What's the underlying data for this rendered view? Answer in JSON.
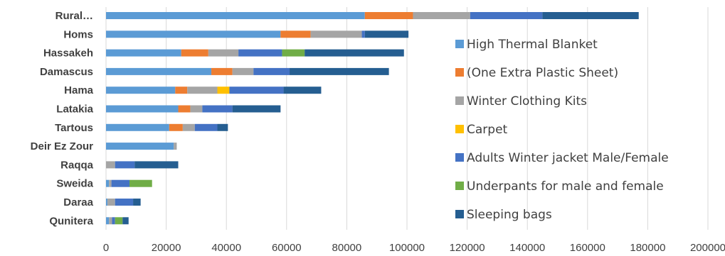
{
  "chart_data": {
    "type": "bar",
    "orientation": "horizontal",
    "stacked": true,
    "categories": [
      "Rural…",
      "Homs",
      "Hassakeh",
      "Damascus",
      "Hama",
      "Latakia",
      "Tartous",
      "Deir Ez Zour",
      "Raqqa",
      "Sweida",
      "Daraa",
      "Qunitera"
    ],
    "series": [
      {
        "name": "High Thermal Blanket",
        "color": "#5b9bd5",
        "values": [
          86000,
          58000,
          25000,
          35000,
          23000,
          24000,
          21000,
          22500,
          0,
          1000,
          500,
          1000
        ]
      },
      {
        "name": "(One Extra Plastic Sheet)",
        "color": "#ed7d31",
        "values": [
          16000,
          10000,
          9000,
          7000,
          4000,
          4000,
          4500,
          0,
          0,
          0,
          0,
          0
        ]
      },
      {
        "name": "Winter Clothing Kits",
        "color": "#a5a5a5",
        "values": [
          19000,
          17000,
          10000,
          7000,
          10000,
          4000,
          4000,
          1000,
          3000,
          800,
          2500,
          1000
        ]
      },
      {
        "name": "Carpet",
        "color": "#ffc000",
        "values": [
          0,
          0,
          0,
          0,
          4000,
          0,
          0,
          0,
          0,
          0,
          0,
          0
        ]
      },
      {
        "name": "Adults Winter jacket Male/Female",
        "color": "#4472c4",
        "values": [
          24000,
          1000,
          14500,
          12000,
          18000,
          10000,
          7500,
          0,
          6500,
          6000,
          6000,
          1000
        ]
      },
      {
        "name": "Underpants for male and female",
        "color": "#70ad47",
        "values": [
          0,
          0,
          7500,
          0,
          0,
          0,
          0,
          0,
          0,
          7500,
          0,
          2500
        ]
      },
      {
        "name": "Sleeping bags",
        "color": "#255e91",
        "values": [
          32000,
          14500,
          33000,
          33000,
          12500,
          16000,
          3500,
          0,
          14500,
          0,
          2500,
          2000
        ]
      }
    ],
    "xlim": [
      0,
      200000
    ],
    "xticks": [
      "0",
      "20000",
      "40000",
      "60000",
      "80000",
      "100000",
      "120000",
      "140000",
      "160000",
      "180000",
      "200000"
    ],
    "grid": "vertical",
    "legend": "right"
  }
}
